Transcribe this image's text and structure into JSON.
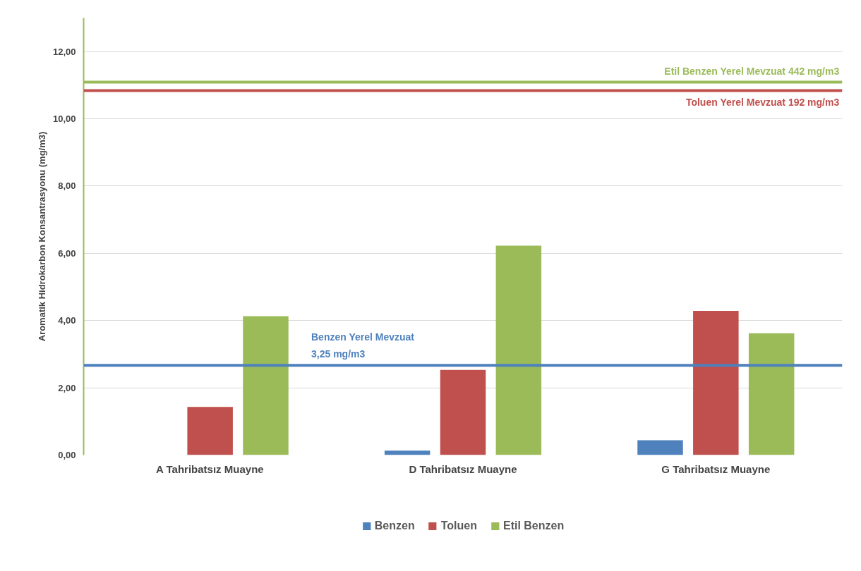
{
  "chart_data": {
    "type": "bar",
    "ylabel": "Aromatik Hidrokarbon Konsantrasyonu (mg/m3)",
    "categories": [
      "A Tahribatsız Muayne",
      "D Tahribatsız Muayne",
      "G Tahribatsız Muayne"
    ],
    "series": [
      {
        "name": "Benzen",
        "color": "#4f81bd",
        "values": [
          0,
          0.13,
          0.44
        ]
      },
      {
        "name": "Toluen",
        "color": "#c0504d",
        "values": [
          1.43,
          2.53,
          4.29
        ]
      },
      {
        "name": "Etil Benzen",
        "color": "#9bbb59",
        "values": [
          4.13,
          6.23,
          3.62
        ]
      }
    ],
    "ylim": [
      0,
      13
    ],
    "yticks": [
      {
        "value": 0,
        "label": "0,00"
      },
      {
        "value": 2,
        "label": "2,00"
      },
      {
        "value": 4,
        "label": "4,00"
      },
      {
        "value": 6,
        "label": "6,00"
      },
      {
        "value": 8,
        "label": "8,00"
      },
      {
        "value": 10,
        "label": "10,00"
      },
      {
        "value": 12,
        "label": "12,00"
      }
    ],
    "ref_lines": [
      {
        "axis": "y",
        "value": 11.09,
        "label": "Etil Benzen Yerel Mevzuat 442 mg/m3",
        "color": "#9bbb59"
      },
      {
        "axis": "y",
        "value": 10.84,
        "label": "Toluen Yerel Mevzuat 192 mg/m3",
        "color": "#c0504d"
      },
      {
        "axis": "y",
        "value": 2.67,
        "label": "Benzen Yerel Mevzuat\n3,25 mg/m3",
        "color": "#4f81bd"
      }
    ],
    "grid": "y",
    "legend": "bottom"
  }
}
